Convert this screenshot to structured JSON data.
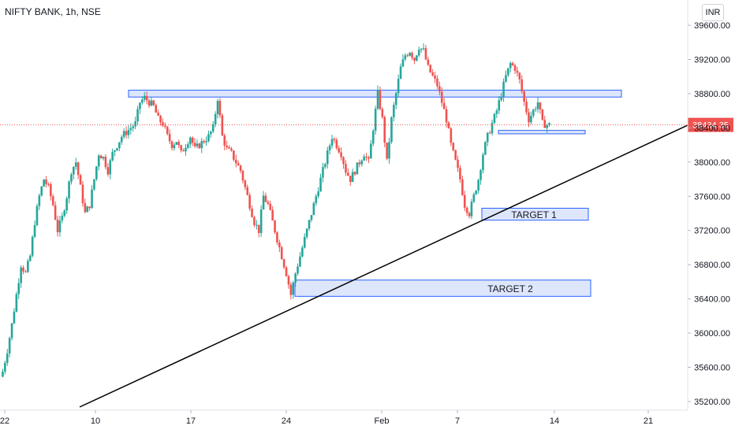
{
  "header": {
    "title": "NIFTY BANK, 1h, NSE",
    "currency": "INR"
  },
  "price_badge": "38434.35",
  "targets": {
    "t1": "TARGET 1",
    "t2": "TARGET 2"
  },
  "colors": {
    "up": "#26a69a",
    "down": "#ef5350",
    "zone_fill": "#dde6fb",
    "zone_stroke": "#2962ff",
    "price_line": "#ef5350",
    "trendline": "#000000"
  },
  "chart_data": {
    "type": "candlestick",
    "title": "NIFTY BANK, 1h, NSE",
    "ylim": [
      35050,
      39700
    ],
    "y_ticks": [
      "39600.00",
      "39200.00",
      "38800.00",
      "38400.00",
      "38000.00",
      "37600.00",
      "37200.00",
      "36800.00",
      "36400.00",
      "36000.00",
      "35600.00",
      "35200.00"
    ],
    "x_ticks": [
      "22",
      "10",
      "17",
      "24",
      "Feb",
      "7",
      "14",
      "21"
    ],
    "last_price": 38434.35,
    "levels": [
      {
        "name": "resistance-zone",
        "start": "Jan 12",
        "end": "Feb 17",
        "low": 38760,
        "high": 38840
      },
      {
        "name": "small-zone",
        "start": "Feb 9",
        "end": "Feb 15",
        "low": 38330,
        "high": 38370
      },
      {
        "name": "TARGET 1",
        "start": "Feb 9",
        "end": "Feb 15",
        "low": 37320,
        "high": 37460
      },
      {
        "name": "TARGET 2",
        "start": "Jan 24",
        "end": "Feb 15",
        "low": 36430,
        "high": 36620
      }
    ],
    "trendline": [
      {
        "x": "Jan 1",
        "y": 35060
      },
      {
        "x": "Feb 22",
        "y": 38430
      }
    ],
    "series": [
      {
        "path_close": [
          35550,
          35800,
          36100,
          36450,
          36800,
          36700,
          36900,
          37300,
          37600,
          37800,
          37700,
          37500,
          37200,
          37350,
          37600,
          37900,
          38000,
          37700,
          37400,
          37500,
          37800,
          38100,
          38050,
          37900,
          38100,
          38200,
          38300,
          38350,
          38400,
          38450,
          38700,
          38750,
          38700,
          38650,
          38500,
          38450,
          38300,
          38200,
          38250,
          38100,
          38200,
          38300,
          38150,
          38200,
          38250,
          38300,
          38400,
          38750,
          38300,
          38150,
          38100,
          38000,
          37900,
          37700,
          37500,
          37300,
          37200,
          37600,
          37500,
          37300,
          37100,
          36900,
          36700,
          36450,
          36700,
          36900,
          37100,
          37300,
          37500,
          37700,
          37900,
          38100,
          38300,
          38200,
          38100,
          37900,
          37800,
          37900,
          38000,
          38100,
          38000,
          38400,
          38800,
          38500,
          38000,
          38500,
          38800,
          39100,
          39250,
          39300,
          39200,
          39350,
          39300,
          39100,
          39000,
          38900,
          38700,
          38500,
          38200,
          38000,
          37800,
          37500,
          37400,
          37600,
          37800,
          38100,
          38300,
          38450,
          38600,
          38800,
          39000,
          39150,
          39100,
          38950,
          38700,
          38500,
          38600,
          38700,
          38450,
          38434
        ]
      }
    ]
  }
}
